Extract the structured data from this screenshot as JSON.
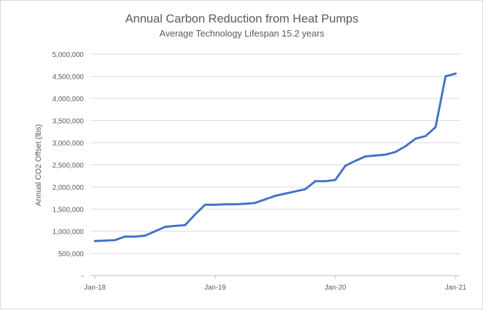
{
  "chart_data": {
    "type": "line",
    "title": "Annual Carbon Reduction from Heat Pumps",
    "subtitle": "Average Technology Lifespan 15.2 years",
    "xlabel": "",
    "ylabel": "Annual CO2 Offset (lbs)",
    "ylim": [
      0,
      5000000
    ],
    "y_ticks": [
      0,
      500000,
      1000000,
      1500000,
      2000000,
      2500000,
      3000000,
      3500000,
      4000000,
      4500000,
      5000000
    ],
    "y_tick_labels": [
      "-",
      "500,000",
      "1,000,000",
      "1,500,000",
      "2,000,000",
      "2,500,000",
      "3,000,000",
      "3,500,000",
      "4,000,000",
      "4,500,000",
      "5,000,000"
    ],
    "x_ticks": [
      "Jan-18",
      "Jan-19",
      "Jan-20",
      "Jan-21"
    ],
    "grid": true,
    "legend": "none",
    "color": "#4472c4",
    "x": [
      "Jan-18",
      "Feb-18",
      "Mar-18",
      "Apr-18",
      "May-18",
      "Jun-18",
      "Jul-18",
      "Aug-18",
      "Sep-18",
      "Oct-18",
      "Nov-18",
      "Dec-18",
      "Jan-19",
      "Feb-19",
      "Mar-19",
      "Apr-19",
      "May-19",
      "Jun-19",
      "Jul-19",
      "Aug-19",
      "Sep-19",
      "Oct-19",
      "Nov-19",
      "Dec-19",
      "Jan-20",
      "Feb-20",
      "Mar-20",
      "Apr-20",
      "May-20",
      "Jun-20",
      "Jul-20",
      "Aug-20",
      "Sep-20",
      "Oct-20",
      "Nov-20",
      "Dec-20",
      "Jan-21"
    ],
    "values": [
      780000,
      790000,
      800000,
      880000,
      880000,
      900000,
      1000000,
      1100000,
      1120000,
      1140000,
      1380000,
      1600000,
      1600000,
      1610000,
      1610000,
      1620000,
      1640000,
      1720000,
      1800000,
      1850000,
      1900000,
      1950000,
      2130000,
      2130000,
      2160000,
      2480000,
      2590000,
      2690000,
      2710000,
      2730000,
      2790000,
      2920000,
      3090000,
      3150000,
      3350000,
      4500000,
      4560000
    ]
  }
}
